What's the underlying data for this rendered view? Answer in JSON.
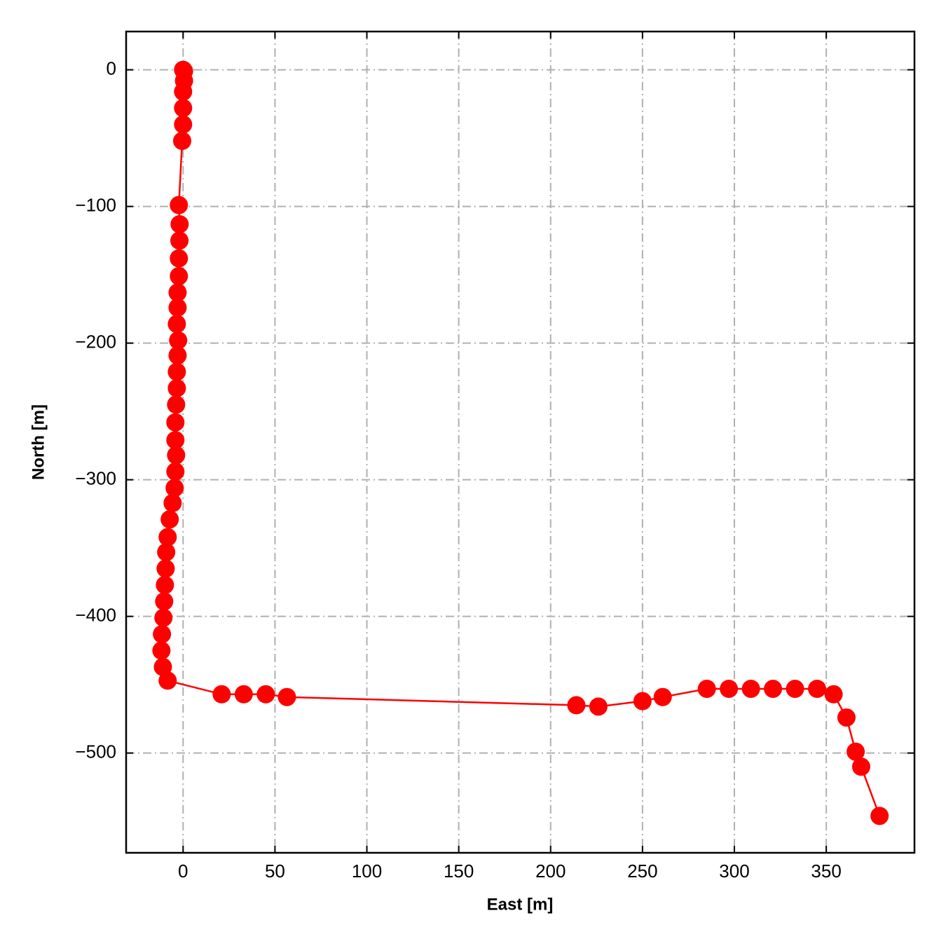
{
  "chart_data": {
    "type": "line",
    "x_label": "East [m]",
    "y_label": "North [m]",
    "x": [
      0,
      0.5,
      0.5,
      0,
      0,
      0,
      -0.5,
      -2.3,
      -1.9,
      -2,
      -2.3,
      -2.3,
      -3,
      -3,
      -3.4,
      -2.7,
      -3,
      -3.4,
      -3.4,
      -3.8,
      -4.2,
      -4.2,
      -3.8,
      -4.2,
      -4.6,
      -5.7,
      -7.3,
      -8.4,
      -9.2,
      -9.5,
      -9.9,
      -10.3,
      -10.7,
      -11.5,
      -11.8,
      -11,
      -8.4,
      21,
      33,
      45,
      56.5,
      214,
      226,
      250,
      261,
      285,
      297,
      309,
      321,
      333,
      345,
      354,
      361,
      366,
      369,
      379
    ],
    "series": [
      {
        "color": "#ff0000",
        "marker": true,
        "values": [
          0,
          -1,
          -8,
          -16,
          -28,
          -40,
          -52,
          -99,
          -113,
          -125,
          -138,
          -151,
          -163,
          -174,
          -186,
          -198,
          -209,
          -221,
          -233,
          -245,
          -258,
          -271,
          -282,
          -294,
          -306,
          -317,
          -329,
          -342,
          -353,
          -365,
          -377,
          -389,
          -401,
          -413,
          -425,
          -437,
          -447,
          -457,
          -457,
          -457,
          -459,
          -465,
          -466,
          -462,
          -459,
          -453,
          -453,
          -453,
          -453,
          -453,
          -453,
          -457,
          -474,
          -499,
          -510,
          -546
        ]
      }
    ],
    "xlim": [
      -31,
      398
    ],
    "ylim": [
      -573,
      28
    ],
    "xticks": [
      0,
      50,
      100,
      150,
      200,
      250,
      300,
      350
    ],
    "yticks": [
      {
        "value": 0,
        "label": "0"
      },
      {
        "value": -100,
        "label": "−100"
      },
      {
        "value": -200,
        "label": "−200"
      },
      {
        "value": -300,
        "label": "−300"
      },
      {
        "value": -400,
        "label": "−400"
      },
      {
        "value": -500,
        "label": "−500"
      }
    ],
    "grid": true
  }
}
